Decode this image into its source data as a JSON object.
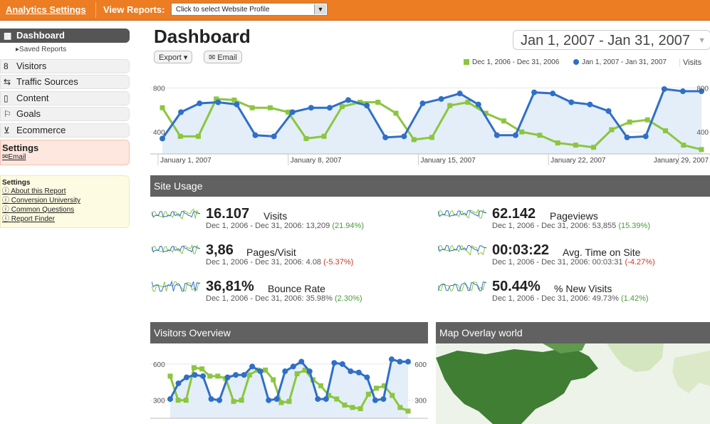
{
  "topbar": {
    "analytics_settings": "Analytics Settings",
    "view_reports": "View Reports:",
    "profile_select": "Click to select Website Profile"
  },
  "sidebar": {
    "items": [
      {
        "label": "Dashboard",
        "icon": "dashboard-icon",
        "active": true
      },
      {
        "label": "Saved Reports"
      },
      {
        "label": "Visitors",
        "icon": "visitors-icon"
      },
      {
        "label": "Traffic Sources",
        "icon": "traffic-icon"
      },
      {
        "label": "Content",
        "icon": "content-icon"
      },
      {
        "label": "Goals",
        "icon": "flag-icon"
      },
      {
        "label": "Ecommerce",
        "icon": "cart-icon"
      }
    ],
    "settings_box": {
      "title": "Settings",
      "email": "Email"
    },
    "help_box": {
      "title": "Settings",
      "links": [
        "About this Report",
        "Conversion University",
        "Common Questions",
        "Report Finder"
      ]
    }
  },
  "header": {
    "title": "Dashboard",
    "date_range": "Jan 1, 2007 - Jan 31, 2007",
    "export_label": "Export",
    "email_label": "Email"
  },
  "legend": {
    "prev": "Dec 1, 2006 - Dec 31, 2006",
    "curr": "Jan 1, 2007 - Jan 31, 2007",
    "metric": "Visits"
  },
  "chart_data": [
    {
      "type": "line",
      "title": "Visits",
      "xlabels": [
        "January 1, 2007",
        "January 8, 2007",
        "January 15, 2007",
        "January 22, 2007",
        "January 29, 2007"
      ],
      "y_ticks_left": [
        "800",
        "400"
      ],
      "y_ticks_right": [
        "800",
        "400"
      ],
      "series": [
        {
          "name": "Jan 1, 2007 - Jan 31, 2007",
          "color": "#2f6fc7",
          "values": [
            340,
            580,
            660,
            670,
            650,
            370,
            360,
            580,
            620,
            620,
            690,
            640,
            350,
            360,
            660,
            700,
            750,
            650,
            370,
            370,
            760,
            750,
            670,
            650,
            590,
            350,
            360,
            790,
            770,
            770
          ]
        },
        {
          "name": "Dec 1, 2006 - Dec 31, 2006",
          "color": "#8cc63e",
          "values": [
            620,
            360,
            360,
            700,
            690,
            620,
            620,
            580,
            340,
            360,
            630,
            670,
            670,
            570,
            330,
            350,
            640,
            670,
            570,
            500,
            400,
            370,
            300,
            280,
            260,
            420,
            490,
            510,
            410,
            280,
            240
          ]
        }
      ]
    },
    {
      "type": "line",
      "title": "Visitors Overview",
      "y_ticks_left": [
        "600",
        "300"
      ],
      "y_ticks_right": [
        "600",
        "300"
      ],
      "series": [
        {
          "name": "Jan 1, 2007 - Jan 31, 2007",
          "color": "#2f6fc7",
          "values": [
            310,
            440,
            490,
            510,
            500,
            310,
            300,
            490,
            510,
            510,
            580,
            540,
            300,
            310,
            540,
            580,
            620,
            540,
            310,
            310,
            610,
            600,
            540,
            530,
            490,
            300,
            310,
            640,
            620,
            620
          ]
        },
        {
          "name": "Dec 1, 2006 - Dec 31, 2006",
          "color": "#8cc63e",
          "values": [
            500,
            300,
            300,
            570,
            560,
            500,
            500,
            480,
            290,
            300,
            510,
            550,
            550,
            470,
            280,
            290,
            520,
            550,
            470,
            420,
            340,
            310,
            260,
            240,
            230,
            350,
            400,
            420,
            340,
            240,
            210
          ]
        }
      ]
    }
  ],
  "site_usage": {
    "title": "Site Usage",
    "stats": [
      {
        "value": "16.107",
        "label": "Visits",
        "compare": "Dec 1, 2006 - Dec 31, 2006: 13,209",
        "change": "(21.94%)",
        "change_dir": "pos"
      },
      {
        "value": "62.142",
        "label": "Pageviews",
        "compare": "Dec 1, 2006 - Dec 31, 2006: 53,855",
        "change": "(15.39%)",
        "change_dir": "pos"
      },
      {
        "value": "3,86",
        "label": "Pages/Visit",
        "compare": "Dec 1, 2006 - Dec 31, 2006: 4.08",
        "change": "(-5.37%)",
        "change_dir": "neg"
      },
      {
        "value": "00:03:22",
        "label": "Avg. Time on Site",
        "compare": "Dec 1, 2006 - Dec 31, 2006: 00:03:31",
        "change": "(-4.27%)",
        "change_dir": "neg"
      },
      {
        "value": "36,81%",
        "label": "Bounce Rate",
        "compare": "Dec 1, 2006 - Dec 31, 2006: 35.98%",
        "change": "(2.30%)",
        "change_dir": "pos"
      },
      {
        "value": "50.44%",
        "label": "% New Visits",
        "compare": "Dec 1, 2006 - Dec 31, 2006: 49.73%",
        "change": "(1.42%)",
        "change_dir": "pos"
      }
    ]
  },
  "visitors_overview": {
    "title": "Visitors Overview"
  },
  "map_overlay": {
    "title": "Map Overlay world"
  }
}
